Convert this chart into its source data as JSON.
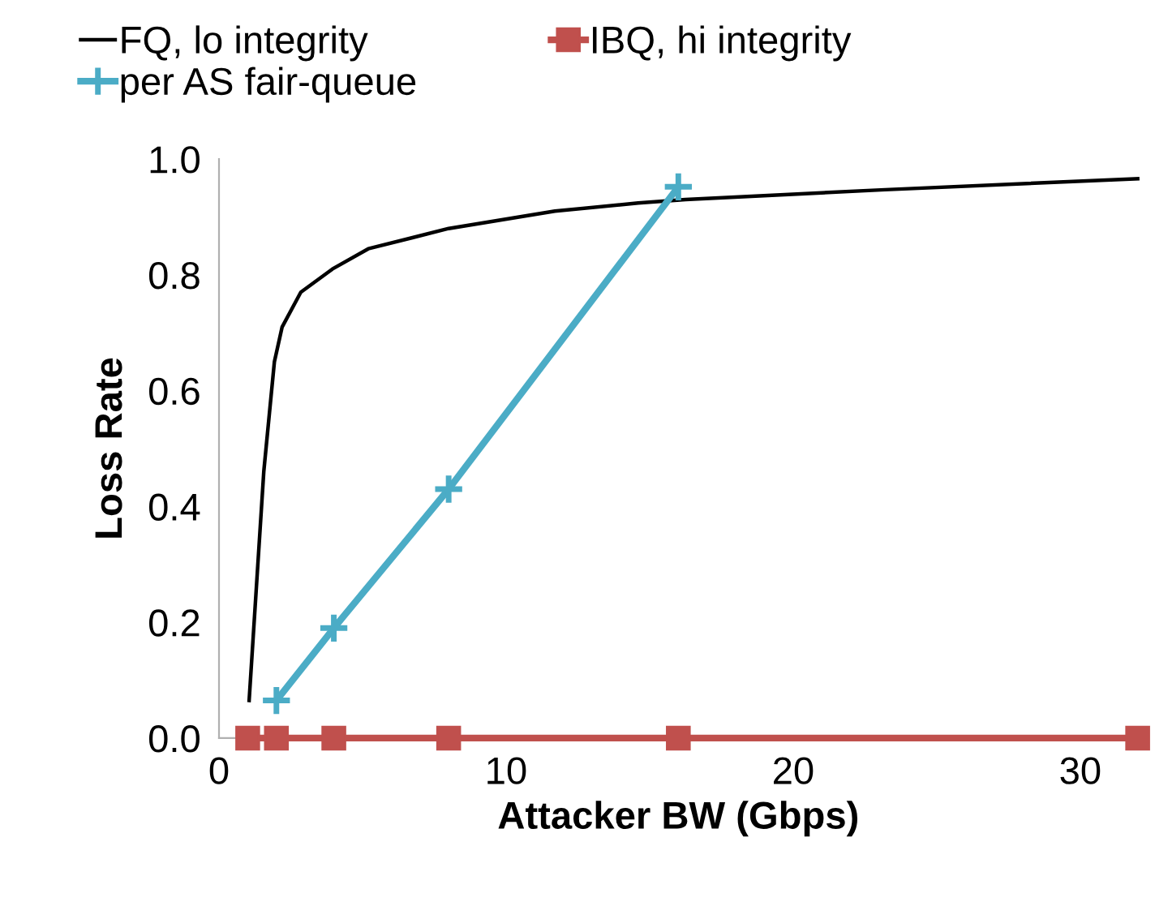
{
  "chart_data": {
    "type": "line",
    "xlabel": "Attacker BW (Gbps)",
    "ylabel": "Loss Rate",
    "xlim": [
      0,
      32
    ],
    "ylim": [
      0,
      1.0
    ],
    "xticks": [
      0,
      10,
      20,
      30
    ],
    "yticks": [
      {
        "value": 0,
        "label": "0.0"
      },
      {
        "value": 0.2,
        "label": "0.2"
      },
      {
        "value": 0.4,
        "label": "0.4"
      },
      {
        "value": 0.6,
        "label": "0.6"
      },
      {
        "value": 0.8,
        "label": "0.8"
      },
      {
        "value": 1.0,
        "label": "1.0"
      }
    ],
    "grid": false,
    "legend": "top",
    "line_style": "solid",
    "series": [
      {
        "name": "FQ, lo integrity",
        "color": "#000000",
        "marker": "none",
        "x": [
          1.05,
          1.56,
          1.93,
          2.2,
          2.85,
          3.95,
          5.2,
          8.0,
          11.7,
          14.6,
          16.25,
          23.2,
          32
        ],
        "values": [
          0.065,
          0.46,
          0.65,
          0.71,
          0.77,
          0.81,
          0.845,
          0.88,
          0.91,
          0.924,
          0.93,
          0.947,
          0.966
        ]
      },
      {
        "name": "IBQ, hi integrity",
        "color": "#c0504d",
        "marker": "square",
        "x": [
          1,
          2,
          4,
          8,
          16,
          32
        ],
        "values": [
          0,
          0,
          0,
          0,
          0,
          0
        ]
      },
      {
        "name": "per AS fair-queue",
        "color": "#4bacc6",
        "marker": "cross",
        "x": [
          2,
          4,
          8,
          16
        ],
        "values": [
          0.065,
          0.19,
          0.43,
          0.952
        ]
      }
    ]
  }
}
